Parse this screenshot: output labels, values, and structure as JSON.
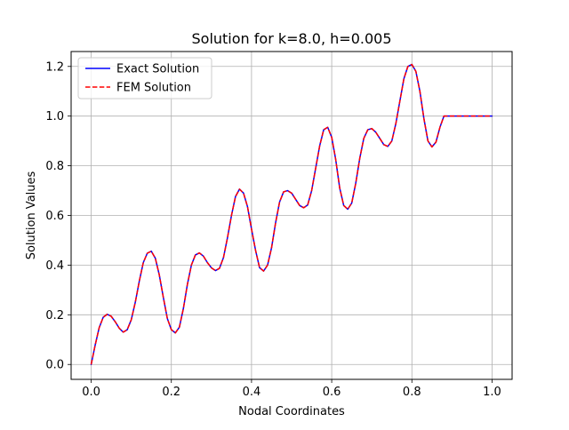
{
  "chart_data": {
    "type": "line",
    "title": "Solution for k=8.0, h=0.005",
    "xlabel": "Nodal Coordinates",
    "ylabel": "Solution Values",
    "xlim": [
      -0.05,
      1.05
    ],
    "ylim": [
      -0.06,
      1.26
    ],
    "xticks": [
      0.0,
      0.2,
      0.4,
      0.6,
      0.8,
      1.0
    ],
    "xtick_labels": [
      "0.0",
      "0.2",
      "0.4",
      "0.6",
      "0.8",
      "1.0"
    ],
    "yticks": [
      0.0,
      0.2,
      0.4,
      0.6,
      0.8,
      1.0,
      1.2
    ],
    "ytick_labels": [
      "0.0",
      "0.2",
      "0.4",
      "0.6",
      "0.8",
      "1.0",
      "1.2"
    ],
    "grid": true,
    "legend_position": "upper left",
    "x": [
      0.0,
      0.01,
      0.02,
      0.03,
      0.04,
      0.05,
      0.06,
      0.07,
      0.08,
      0.09,
      0.1,
      0.11,
      0.12,
      0.13,
      0.14,
      0.15,
      0.16,
      0.17,
      0.18,
      0.19,
      0.2,
      0.21,
      0.22,
      0.23,
      0.24,
      0.25,
      0.26,
      0.27,
      0.28,
      0.29,
      0.3,
      0.31,
      0.32,
      0.33,
      0.34,
      0.35,
      0.36,
      0.37,
      0.38,
      0.39,
      0.4,
      0.41,
      0.42,
      0.43,
      0.44,
      0.45,
      0.46,
      0.47,
      0.48,
      0.49,
      0.5,
      0.51,
      0.52,
      0.53,
      0.54,
      0.55,
      0.56,
      0.57,
      0.58,
      0.59,
      0.6,
      0.61,
      0.62,
      0.63,
      0.64,
      0.65,
      0.66,
      0.67,
      0.68,
      0.69,
      0.7,
      0.71,
      0.72,
      0.73,
      0.74,
      0.75,
      0.76,
      0.77,
      0.78,
      0.79,
      0.8,
      0.81,
      0.82,
      0.83,
      0.84,
      0.85,
      0.86,
      0.87,
      0.88,
      0.89,
      0.9,
      0.91,
      0.92,
      0.93,
      0.94,
      0.95,
      0.96,
      0.97,
      0.98,
      0.99,
      1.0
    ],
    "series": [
      {
        "name": "Exact Solution",
        "color": "#0000ff",
        "linestyle": "solid",
        "values": [
          0.0,
          0.078,
          0.148,
          0.19,
          0.202,
          0.194,
          0.172,
          0.146,
          0.13,
          0.14,
          0.18,
          0.25,
          0.335,
          0.41,
          0.448,
          0.456,
          0.428,
          0.36,
          0.27,
          0.185,
          0.14,
          0.127,
          0.15,
          0.225,
          0.322,
          0.4,
          0.441,
          0.449,
          0.436,
          0.41,
          0.389,
          0.378,
          0.387,
          0.43,
          0.51,
          0.6,
          0.676,
          0.706,
          0.69,
          0.635,
          0.545,
          0.46,
          0.39,
          0.376,
          0.4,
          0.47,
          0.57,
          0.654,
          0.695,
          0.7,
          0.69,
          0.665,
          0.64,
          0.631,
          0.642,
          0.7,
          0.79,
          0.88,
          0.945,
          0.955,
          0.915,
          0.825,
          0.71,
          0.64,
          0.625,
          0.65,
          0.73,
          0.83,
          0.91,
          0.945,
          0.95,
          0.935,
          0.91,
          0.885,
          0.878,
          0.9,
          0.97,
          1.06,
          1.15,
          1.2,
          1.208,
          1.18,
          1.1,
          0.99,
          0.9,
          0.876,
          0.895,
          0.955,
          1.0,
          1.0,
          1.0,
          1.0,
          1.0,
          1.0,
          1.0,
          1.0,
          1.0,
          1.0,
          1.0,
          1.0,
          1.0
        ]
      },
      {
        "name": "FEM Solution",
        "color": "#ff0000",
        "linestyle": "dashed",
        "values": [
          0.0,
          0.078,
          0.148,
          0.19,
          0.202,
          0.194,
          0.172,
          0.146,
          0.13,
          0.14,
          0.18,
          0.25,
          0.335,
          0.41,
          0.448,
          0.456,
          0.428,
          0.36,
          0.27,
          0.185,
          0.14,
          0.127,
          0.15,
          0.225,
          0.322,
          0.4,
          0.441,
          0.449,
          0.436,
          0.41,
          0.389,
          0.378,
          0.387,
          0.43,
          0.51,
          0.6,
          0.676,
          0.706,
          0.69,
          0.635,
          0.545,
          0.46,
          0.39,
          0.376,
          0.4,
          0.47,
          0.57,
          0.654,
          0.695,
          0.7,
          0.69,
          0.665,
          0.64,
          0.631,
          0.642,
          0.7,
          0.79,
          0.88,
          0.945,
          0.955,
          0.915,
          0.825,
          0.71,
          0.64,
          0.625,
          0.65,
          0.73,
          0.83,
          0.91,
          0.945,
          0.95,
          0.935,
          0.91,
          0.885,
          0.878,
          0.9,
          0.97,
          1.06,
          1.15,
          1.2,
          1.208,
          1.18,
          1.1,
          0.99,
          0.9,
          0.876,
          0.895,
          0.955,
          1.0,
          1.0,
          1.0,
          1.0,
          1.0,
          1.0,
          1.0,
          1.0,
          1.0,
          1.0,
          1.0,
          1.0,
          1.0
        ]
      }
    ]
  }
}
